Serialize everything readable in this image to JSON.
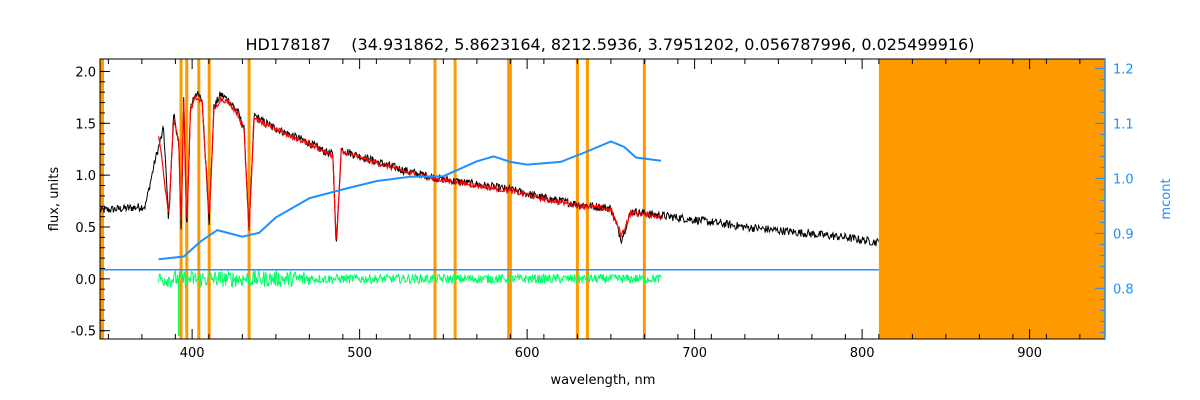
{
  "chart_data": {
    "type": "line",
    "title": "HD178187    (34.931862, 5.8623164, 8212.5936, 3.7951202, 0.056787996, 0.025499916)",
    "xlabel": "wavelength, nm",
    "ylabel": "flux, units",
    "y2label": "mcont",
    "xlim": [
      345,
      945
    ],
    "ylim": [
      -0.58,
      2.12
    ],
    "y2lim": [
      0.708,
      1.217
    ],
    "x_ticks": [
      400,
      500,
      600,
      700,
      800,
      900
    ],
    "y_ticks": [
      -0.5,
      0.0,
      0.5,
      1.0,
      1.5,
      2.0
    ],
    "y_tick_labels": [
      "-0.5",
      "0.0",
      "0.5",
      "1.0",
      "1.5",
      "2.0"
    ],
    "y2_ticks": [
      0.8,
      0.9,
      1.0,
      1.1,
      1.2
    ],
    "y2_tick_labels": [
      "0.8",
      "0.9",
      "1.0",
      "1.1",
      "1.2"
    ],
    "grid": false,
    "colors": {
      "observed": "#000000",
      "model": "#ff0000",
      "residual": "#00ff66",
      "mcont": "#1e90ff",
      "mask": "#ff9900",
      "right_axis": "#1e90ff"
    },
    "mask_lines": [
      393.4,
      396.8,
      404.0,
      410.2,
      434.0,
      545.0,
      557.0,
      589.0,
      590.0,
      630.0,
      636.0,
      670.0
    ],
    "mask_band": [
      810,
      945
    ],
    "series": [
      {
        "role": "observed",
        "x": [
          345,
          360,
          372,
          378,
          383,
          386,
          389,
          392,
          393.4,
          395,
          396.8,
          399,
          402,
          406,
          410.2,
          413,
          417,
          422,
          427,
          431,
          434,
          437,
          442,
          450,
          460,
          470,
          480,
          484,
          486.1,
          489,
          495,
          510,
          530,
          550,
          570,
          590,
          610,
          630,
          640,
          650,
          656.3,
          662,
          680,
          700,
          730,
          760,
          790,
          810
        ],
        "y": [
          0.66,
          0.68,
          0.7,
          1.15,
          1.45,
          0.55,
          1.6,
          1.3,
          0.45,
          1.75,
          0.42,
          1.65,
          1.8,
          1.72,
          0.55,
          1.65,
          1.78,
          1.72,
          1.62,
          1.45,
          0.45,
          1.58,
          1.52,
          1.45,
          1.38,
          1.31,
          1.22,
          1.2,
          0.3,
          1.25,
          1.21,
          1.13,
          1.03,
          0.96,
          0.91,
          0.86,
          0.78,
          0.72,
          0.7,
          0.68,
          0.38,
          0.65,
          0.61,
          0.57,
          0.5,
          0.45,
          0.4,
          0.35
        ]
      },
      {
        "role": "model",
        "x": [
          380,
          386,
          389,
          392,
          393.4,
          395,
          396.8,
          399,
          402,
          406,
          410.2,
          413,
          417,
          422,
          427,
          431,
          434,
          437,
          442,
          450,
          460,
          470,
          480,
          484,
          486.1,
          489,
          495,
          510,
          530,
          550,
          570,
          590,
          610,
          630,
          640,
          650,
          656.3,
          662,
          680
        ],
        "y": [
          1.4,
          0.62,
          1.55,
          1.32,
          0.48,
          1.72,
          0.45,
          1.62,
          1.75,
          1.7,
          0.58,
          1.62,
          1.74,
          1.7,
          1.6,
          1.44,
          0.48,
          1.56,
          1.5,
          1.44,
          1.37,
          1.3,
          1.22,
          1.19,
          0.33,
          1.23,
          1.2,
          1.12,
          1.02,
          0.95,
          0.9,
          0.85,
          0.77,
          0.71,
          0.69,
          0.67,
          0.42,
          0.64,
          0.6
        ]
      },
      {
        "role": "mcont",
        "axis": "right",
        "x": [
          380,
          395,
          405,
          415,
          430,
          440,
          450,
          470,
          490,
          510,
          530,
          550,
          570,
          580,
          590,
          600,
          620,
          635,
          650,
          658,
          665,
          680
        ],
        "y": [
          0.853,
          0.858,
          0.885,
          0.906,
          0.894,
          0.901,
          0.929,
          0.964,
          0.98,
          0.995,
          1.003,
          1.004,
          1.031,
          1.04,
          1.03,
          1.025,
          1.03,
          1.048,
          1.067,
          1.057,
          1.038,
          1.032
        ]
      },
      {
        "role": "mcont_baseline",
        "axis": "right",
        "x": [
          345,
          810
        ],
        "y": [
          0.834,
          0.834
        ]
      },
      {
        "role": "residual",
        "x": [
          380,
          680
        ],
        "y": [
          0.0,
          0.0
        ],
        "noise_amplitude": 0.05,
        "spike_x": 392,
        "spike_y": -0.55
      }
    ]
  }
}
